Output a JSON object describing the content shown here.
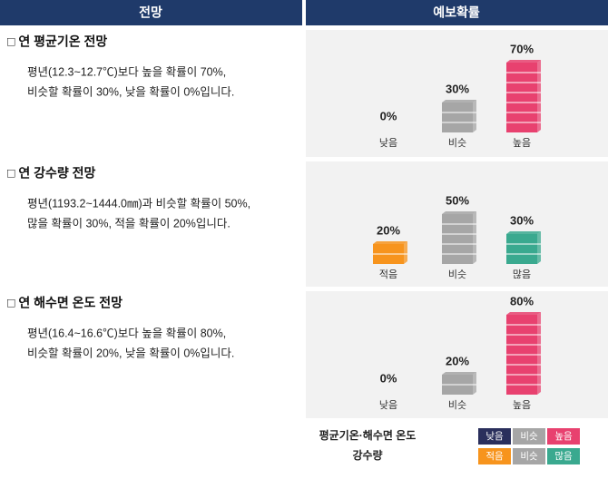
{
  "header": {
    "left": "전망",
    "right": "예보확률"
  },
  "sections": [
    {
      "title": "□ 연 평균기온 전망",
      "text": [
        "평년(12.3~12.7℃)보다 높을 확률이 70%,",
        "비슷할 확률이 30%, 낮을 확률이 0%입니다."
      ],
      "categories": [
        {
          "label": "낮음",
          "value": 0,
          "value_label": "0%",
          "color": "#2a2f5c"
        },
        {
          "label": "비슷",
          "value": 30,
          "value_label": "30%",
          "color": "#a6a6a6"
        },
        {
          "label": "높음",
          "value": 70,
          "value_label": "70%",
          "color": "#e8416f"
        }
      ]
    },
    {
      "title": "□ 연 강수량 전망",
      "text": [
        "평년(1193.2~1444.0㎜)과 비슷할 확률이 50%,",
        "많을 확률이 30%, 적을 확률이 20%입니다."
      ],
      "categories": [
        {
          "label": "적음",
          "value": 20,
          "value_label": "20%",
          "color": "#f7941d"
        },
        {
          "label": "비슷",
          "value": 50,
          "value_label": "50%",
          "color": "#a6a6a6"
        },
        {
          "label": "많음",
          "value": 30,
          "value_label": "30%",
          "color": "#3aa98f"
        }
      ]
    },
    {
      "title": "□ 연 해수면 온도 전망",
      "text": [
        "평년(16.4~16.6℃)보다 높을 확률이 80%,",
        "비슷할 확률이 20%, 낮을 확률이 0%입니다."
      ],
      "categories": [
        {
          "label": "낮음",
          "value": 0,
          "value_label": "0%",
          "color": "#2a2f5c"
        },
        {
          "label": "비슷",
          "value": 20,
          "value_label": "20%",
          "color": "#a6a6a6"
        },
        {
          "label": "높음",
          "value": 80,
          "value_label": "80%",
          "color": "#e8416f"
        }
      ]
    }
  ],
  "legend": {
    "rows": [
      {
        "label": "평균기온·해수면 온도",
        "items": [
          {
            "label": "낮음",
            "color": "#2a2f5c"
          },
          {
            "label": "비슷",
            "color": "#a6a6a6"
          },
          {
            "label": "높음",
            "color": "#e8416f"
          }
        ]
      },
      {
        "label": "강수량",
        "items": [
          {
            "label": "적음",
            "color": "#f7941d"
          },
          {
            "label": "비슷",
            "color": "#a6a6a6"
          },
          {
            "label": "많음",
            "color": "#3aa98f"
          }
        ]
      }
    ]
  }
}
